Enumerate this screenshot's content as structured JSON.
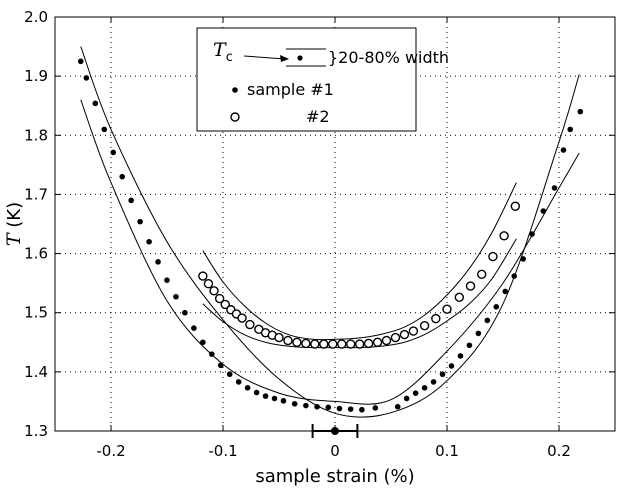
{
  "chart_data": {
    "type": "scatter",
    "xlabel": "sample strain (%)",
    "ylabel_var": "T",
    "ylabel_unit": " (K)",
    "xlim": [
      -0.25,
      0.25
    ],
    "ylim": [
      1.3,
      2.0
    ],
    "xticks": [
      -0.2,
      -0.1,
      0,
      0.1,
      0.2
    ],
    "xtick_labels": [
      "-0.2",
      "-0.1",
      "0",
      "0.1",
      "0.2"
    ],
    "yticks": [
      1.3,
      1.4,
      1.5,
      1.6,
      1.7,
      1.8,
      1.9,
      2.0
    ],
    "ytick_labels": [
      "1.3",
      "1.4",
      "1.5",
      "1.6",
      "1.7",
      "1.8",
      "1.9",
      "2.0"
    ],
    "grid": "dotted",
    "legend": {
      "placement": "top-center",
      "tc_label": "T",
      "tc_sub": "c",
      "width_label": "}20-80% width",
      "series1_label": "sample #1",
      "series2_label": "#2"
    },
    "series": [
      {
        "marker": "filled-dot",
        "x": [
          -0.227,
          -0.222,
          -0.214,
          -0.206,
          -0.198,
          -0.19,
          -0.182,
          -0.174,
          -0.166,
          -0.158,
          -0.15,
          -0.142,
          -0.134,
          -0.126,
          -0.118,
          -0.11,
          -0.102,
          -0.094,
          -0.086,
          -0.078,
          -0.07,
          -0.062,
          -0.054,
          -0.046,
          -0.036,
          -0.026,
          -0.016,
          -0.006,
          0.004,
          0.014,
          0.024,
          0.036,
          0.056,
          0.064,
          0.072,
          0.08,
          0.088,
          0.096,
          0.104,
          0.112,
          0.12,
          0.128,
          0.136,
          0.144,
          0.152,
          0.16,
          0.168,
          0.176,
          0.186,
          0.196,
          0.204,
          0.21,
          0.219
        ],
        "y": [
          1.925,
          1.897,
          1.854,
          1.81,
          1.771,
          1.73,
          1.69,
          1.654,
          1.62,
          1.586,
          1.555,
          1.527,
          1.5,
          1.474,
          1.45,
          1.43,
          1.411,
          1.396,
          1.383,
          1.373,
          1.365,
          1.359,
          1.355,
          1.351,
          1.346,
          1.343,
          1.341,
          1.34,
          1.338,
          1.337,
          1.336,
          1.339,
          1.341,
          1.355,
          1.364,
          1.373,
          1.383,
          1.396,
          1.41,
          1.427,
          1.445,
          1.465,
          1.487,
          1.51,
          1.536,
          1.562,
          1.591,
          1.633,
          1.672,
          1.711,
          1.775,
          1.81,
          1.84
        ]
      },
      {
        "marker": "open-circle",
        "x": [
          -0.118,
          -0.113,
          -0.108,
          -0.103,
          -0.098,
          -0.093,
          -0.088,
          -0.083,
          -0.076,
          -0.068,
          -0.062,
          -0.056,
          -0.05,
          -0.042,
          -0.034,
          -0.026,
          -0.018,
          -0.01,
          -0.002,
          0.006,
          0.014,
          0.022,
          0.03,
          0.038,
          0.046,
          0.054,
          0.062,
          0.07,
          0.08,
          0.09,
          0.1,
          0.111,
          0.121,
          0.131,
          0.141,
          0.151,
          0.161
        ],
        "y": [
          1.562,
          1.549,
          1.537,
          1.524,
          1.514,
          1.505,
          1.498,
          1.491,
          1.48,
          1.472,
          1.466,
          1.462,
          1.458,
          1.453,
          1.45,
          1.448,
          1.447,
          1.447,
          1.447,
          1.447,
          1.447,
          1.447,
          1.448,
          1.45,
          1.453,
          1.458,
          1.463,
          1.469,
          1.478,
          1.49,
          1.506,
          1.526,
          1.545,
          1.565,
          1.595,
          1.63,
          1.68
        ]
      }
    ],
    "width_bands": [
      {
        "x": [
          -0.227,
          -0.2,
          -0.15,
          -0.1,
          -0.05,
          0.0,
          0.05,
          0.1,
          0.15,
          0.2,
          0.218
        ],
        "y": [
          1.86,
          1.72,
          1.52,
          1.413,
          1.364,
          1.35,
          1.353,
          1.435,
          1.55,
          1.711,
          1.77
        ]
      },
      {
        "x": [
          -0.227,
          -0.2,
          -0.15,
          -0.1,
          -0.05,
          0.0,
          0.05,
          0.1,
          0.15,
          0.2,
          0.218
        ],
        "y": [
          1.95,
          1.81,
          1.62,
          1.488,
          1.388,
          1.33,
          1.331,
          1.385,
          1.515,
          1.789,
          1.903
        ]
      },
      {
        "x": [
          -0.118,
          -0.1,
          -0.08,
          -0.06,
          -0.04,
          -0.02,
          0.0,
          0.02,
          0.04,
          0.06,
          0.08,
          0.1,
          0.12,
          0.14,
          0.162
        ],
        "y": [
          1.605,
          1.552,
          1.51,
          1.48,
          1.462,
          1.455,
          1.455,
          1.457,
          1.463,
          1.474,
          1.496,
          1.53,
          1.575,
          1.635,
          1.72
        ]
      },
      {
        "x": [
          -0.118,
          -0.1,
          -0.08,
          -0.06,
          -0.04,
          -0.02,
          0.0,
          0.02,
          0.04,
          0.06,
          0.08,
          0.1,
          0.12,
          0.14,
          0.162
        ],
        "y": [
          1.515,
          1.485,
          1.462,
          1.449,
          1.443,
          1.441,
          1.441,
          1.441,
          1.443,
          1.449,
          1.463,
          1.486,
          1.515,
          1.557,
          1.625
        ]
      }
    ],
    "error_bar": {
      "x": 0.0,
      "y": 1.3,
      "xerr": 0.02
    }
  }
}
